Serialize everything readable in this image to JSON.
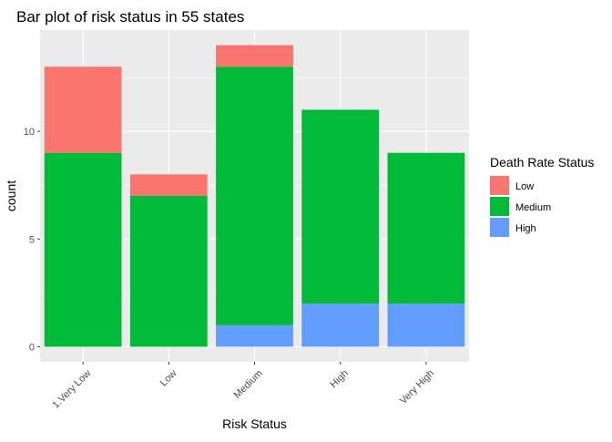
{
  "chart_data": {
    "type": "bar",
    "stacked": true,
    "title": "Bar plot of risk status in 55 states",
    "xlabel": "Risk Status",
    "ylabel": "count",
    "categories": [
      "1.Very Low",
      "Low",
      "Medium",
      "High",
      "Very High"
    ],
    "series": [
      {
        "name": "Low",
        "color": "#F8766D",
        "values": [
          4,
          1,
          1,
          0,
          0
        ]
      },
      {
        "name": "Medium",
        "color": "#00BA38",
        "values": [
          9,
          7,
          12,
          9,
          7
        ]
      },
      {
        "name": "High",
        "color": "#619CFF",
        "values": [
          0,
          0,
          1,
          2,
          2
        ]
      }
    ],
    "stack_order_bottom_to_top": [
      "High",
      "Medium",
      "Low"
    ],
    "y_ticks": [
      0,
      5,
      10
    ],
    "ylim": [
      -0.7,
      14.7
    ],
    "grid": true,
    "legend": {
      "title": "Death Rate Status",
      "position": "right",
      "items": [
        "Low",
        "Medium",
        "High"
      ]
    },
    "panel_background": "#EBEBEB",
    "x_tick_rotation": 45
  }
}
